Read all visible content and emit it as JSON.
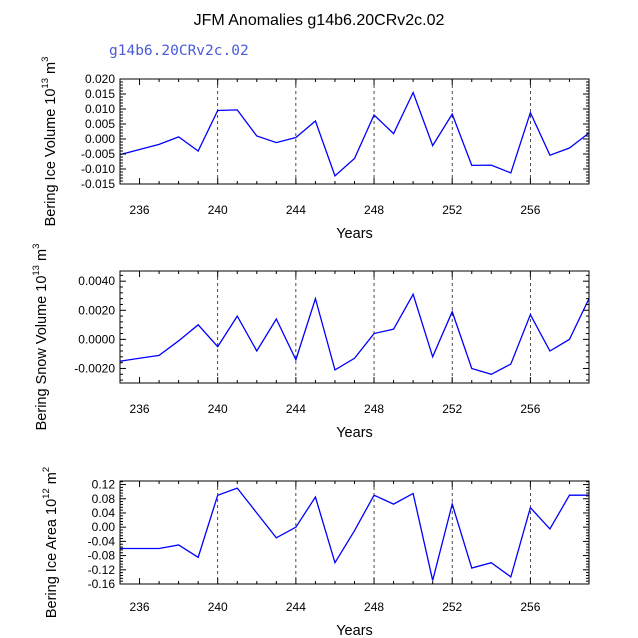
{
  "title": "JFM Anomalies g14b6.20CRv2c.02",
  "subtitle": "g14b6.20CRv2c.02",
  "colors": {
    "line": "#0000ff",
    "subtitle": "#4a5bd8",
    "axis": "#000000",
    "gridline": "#000000"
  },
  "chart_data": [
    {
      "type": "line",
      "xlabel": "Years",
      "ylabel": {
        "text": "Bering Ice Volume 10",
        "exp": "13",
        "unit": " m",
        "unit_exp": "3"
      },
      "xlim": [
        235,
        259
      ],
      "ylim": [
        -0.015,
        0.02
      ],
      "xticks": [
        236,
        240,
        244,
        248,
        252,
        256
      ],
      "yticks": [
        -0.015,
        -0.01,
        -0.005,
        0.0,
        0.005,
        0.01,
        0.015,
        0.02
      ],
      "ytick_labels": [
        "-0.015",
        "-0.010",
        "-0.005",
        "0.000",
        "0.005",
        "0.010",
        "0.015",
        "0.020"
      ],
      "grid_x": [
        240,
        244,
        248,
        252,
        256
      ],
      "x": [
        235,
        236,
        237,
        238,
        239,
        240,
        241,
        242,
        243,
        244,
        245,
        246,
        247,
        248,
        249,
        250,
        251,
        252,
        253,
        254,
        255,
        256,
        257,
        258,
        259
      ],
      "y": [
        -0.0052,
        -0.0035,
        -0.0018,
        0.0007,
        -0.004,
        0.0095,
        0.0097,
        0.001,
        -0.0012,
        0.0005,
        0.006,
        -0.0123,
        -0.0065,
        0.008,
        0.0018,
        0.0155,
        -0.0022,
        0.0083,
        -0.0088,
        -0.0087,
        -0.0113,
        0.0088,
        -0.0054,
        -0.003,
        0.002
      ]
    },
    {
      "type": "line",
      "xlabel": "Years",
      "ylabel": {
        "text": "Bering Snow Volume 10",
        "exp": "13",
        "unit": " m",
        "unit_exp": "3"
      },
      "xlim": [
        235,
        259
      ],
      "ylim": [
        -0.003,
        0.0047
      ],
      "xticks": [
        236,
        240,
        244,
        248,
        252,
        256
      ],
      "yticks": [
        -0.002,
        0.0,
        0.002,
        0.004
      ],
      "ytick_labels": [
        "-0.0020",
        "0.0000",
        "0.0020",
        "0.0040"
      ],
      "grid_x": [
        240,
        244,
        248,
        252,
        256
      ],
      "x": [
        235,
        236,
        237,
        238,
        239,
        240,
        241,
        242,
        243,
        244,
        245,
        246,
        247,
        248,
        249,
        250,
        251,
        252,
        253,
        254,
        255,
        256,
        257,
        258,
        259
      ],
      "y": [
        -0.0015,
        -0.0013,
        -0.0011,
        -0.0001,
        0.001,
        -0.0005,
        0.0016,
        -0.0008,
        0.0014,
        -0.0014,
        0.0028,
        -0.0021,
        -0.0013,
        0.0004,
        0.0007,
        0.0031,
        -0.0012,
        0.0019,
        -0.002,
        -0.0024,
        -0.0017,
        0.0017,
        -0.0008,
        0.0,
        0.0028
      ]
    },
    {
      "type": "line",
      "xlabel": "Years",
      "ylabel": {
        "text": "Bering Ice Area 10",
        "exp": "12",
        "unit": " m",
        "unit_exp": "2"
      },
      "xlim": [
        235,
        259
      ],
      "ylim": [
        -0.16,
        0.13
      ],
      "xticks": [
        236,
        240,
        244,
        248,
        252,
        256
      ],
      "yticks": [
        -0.16,
        -0.12,
        -0.08,
        -0.04,
        0.0,
        0.04,
        0.08,
        0.12
      ],
      "ytick_labels": [
        "-0.16",
        "-0.12",
        "-0.08",
        "-0.04",
        "0.00",
        "0.04",
        "0.08",
        "0.12"
      ],
      "grid_x": [
        240,
        244,
        248,
        252,
        256
      ],
      "x": [
        235,
        236,
        237,
        238,
        239,
        240,
        241,
        242,
        243,
        244,
        245,
        246,
        247,
        248,
        249,
        250,
        251,
        252,
        253,
        254,
        255,
        256,
        257,
        258,
        259
      ],
      "y": [
        -0.06,
        -0.06,
        -0.06,
        -0.05,
        -0.085,
        0.09,
        0.11,
        0.04,
        -0.03,
        0.0,
        0.085,
        -0.1,
        -0.01,
        0.09,
        0.065,
        0.095,
        -0.15,
        0.065,
        -0.115,
        -0.1,
        -0.14,
        0.055,
        -0.005,
        0.09,
        0.09
      ]
    }
  ]
}
